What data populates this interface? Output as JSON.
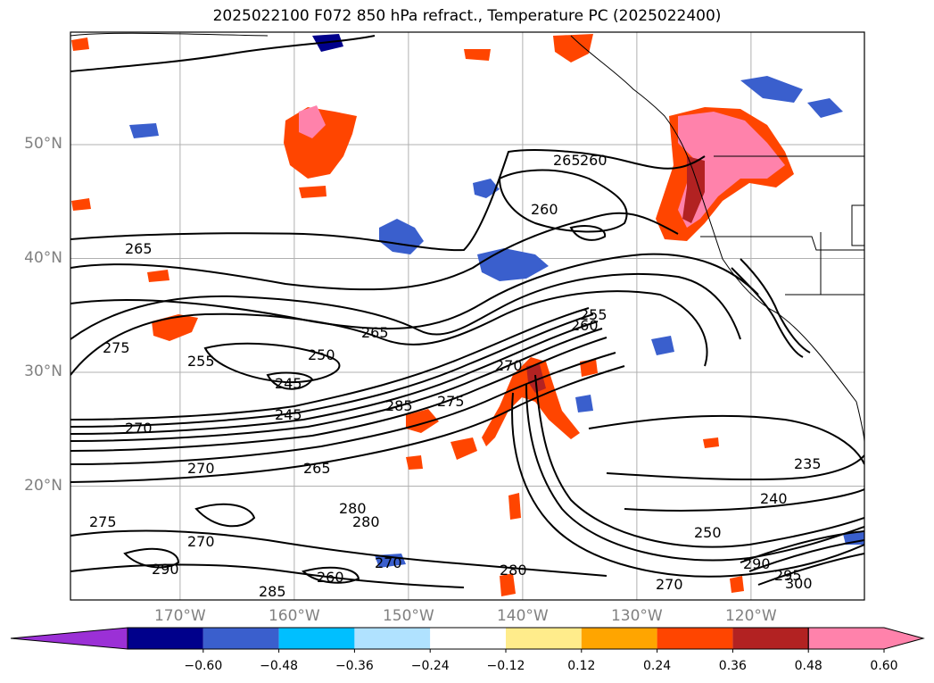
{
  "title": "2025022100 F072 850 hPa refract., Temperature PC (2025022400)",
  "lat_labels": [
    {
      "text": "50°N",
      "lat": 50
    },
    {
      "text": "40°N",
      "lat": 40
    },
    {
      "text": "30°N",
      "lat": 30
    },
    {
      "text": "20°N",
      "lat": 20
    }
  ],
  "lon_labels": [
    {
      "text": "170°W",
      "lon": -170
    },
    {
      "text": "160°W",
      "lon": -160
    },
    {
      "text": "150°W",
      "lon": -150
    },
    {
      "text": "140°W",
      "lon": -140
    },
    {
      "text": "130°W",
      "lon": -130
    },
    {
      "text": "120°W",
      "lon": -120
    }
  ],
  "contour_labels": [
    "265",
    "260",
    "265",
    "260",
    "275",
    "255",
    "265",
    "250",
    "245",
    "245",
    "270",
    "285",
    "275",
    "270",
    "280",
    "270",
    "265",
    "280",
    "235",
    "240",
    "250",
    "270",
    "280",
    "290",
    "270",
    "260",
    "270",
    "300",
    "295",
    "290",
    "285",
    "260",
    "255",
    "275"
  ],
  "colorbar": {
    "ticks": [
      "−0.60",
      "−0.48",
      "−0.36",
      "−0.24",
      "−0.12",
      "0.12",
      "0.24",
      "0.36",
      "0.48",
      "0.60"
    ],
    "colors": [
      "#9b30d6",
      "#00008b",
      "#3a5fcd",
      "#00bfff",
      "#b0e2ff",
      "#ffffff",
      "#ffec8b",
      "#ffa500",
      "#ff4500",
      "#b22222",
      "#ff82ab"
    ]
  }
}
